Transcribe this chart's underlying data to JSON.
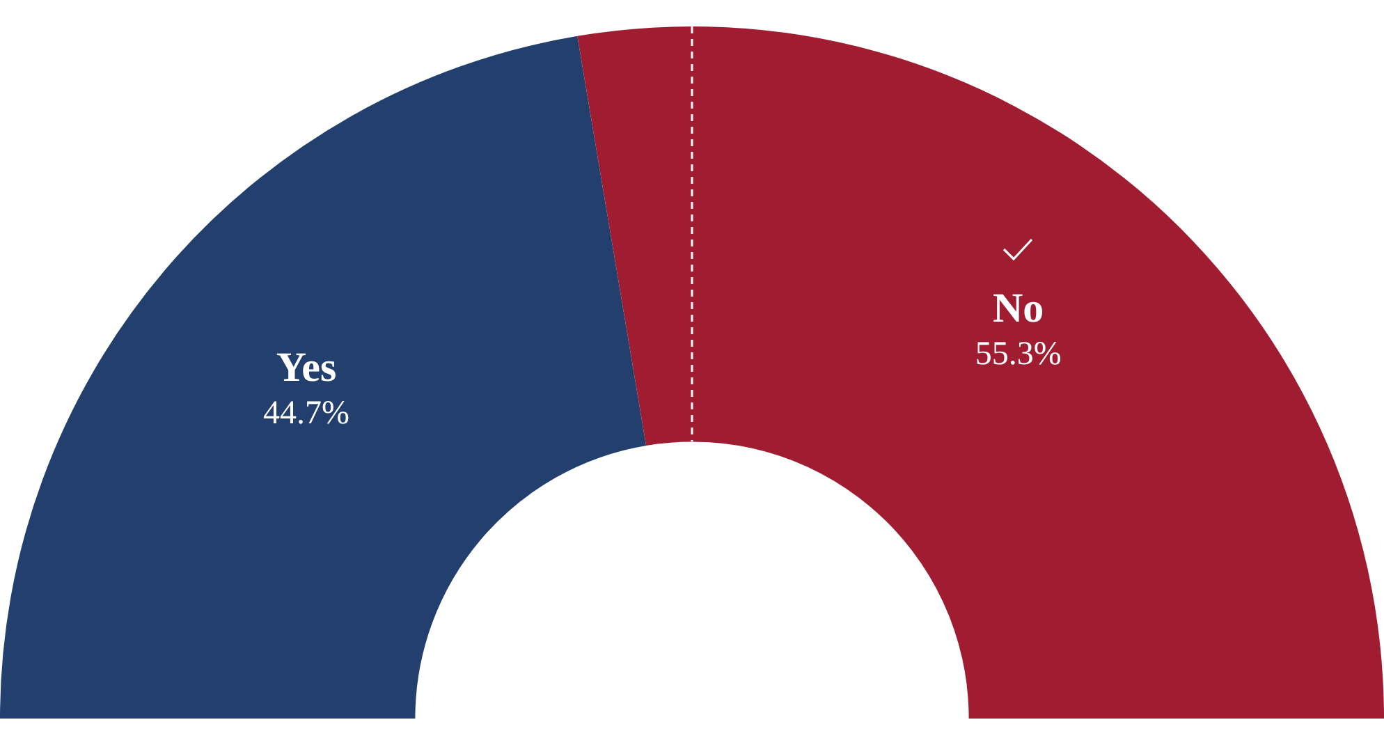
{
  "chart_data": {
    "type": "donut",
    "categories": [
      "Yes",
      "No"
    ],
    "values": [
      44.7,
      55.3
    ],
    "colors": [
      "#223f6e",
      "#a01c30"
    ],
    "value_labels": [
      "44.7%",
      "55.3%"
    ],
    "legend": false
  }
}
